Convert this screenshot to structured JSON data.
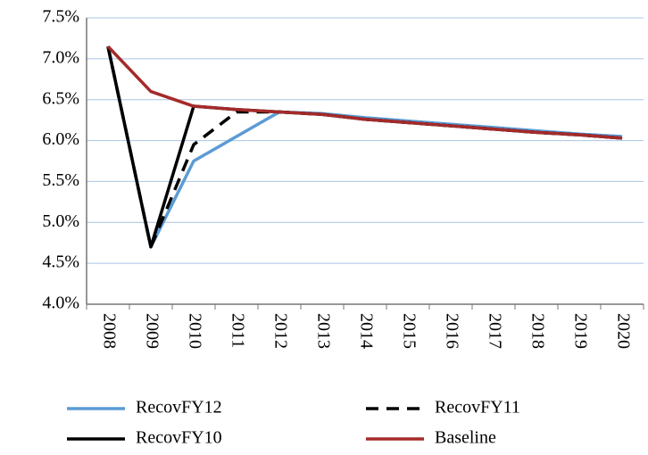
{
  "chart_data": {
    "type": "line",
    "categories": [
      "2008",
      "2009",
      "2010",
      "2011",
      "2012",
      "2013",
      "2014",
      "2015",
      "2016",
      "2017",
      "2018",
      "2019",
      "2020"
    ],
    "series": [
      {
        "name": "RecovFY12",
        "color": "#5b9bd5",
        "style": "solid",
        "values": [
          7.15,
          4.7,
          5.75,
          6.05,
          6.35,
          6.33,
          6.28,
          6.24,
          6.2,
          6.16,
          6.12,
          6.08,
          6.05
        ]
      },
      {
        "name": "RecovFY11",
        "color": "#000000",
        "style": "dashed",
        "values": [
          7.15,
          4.7,
          5.95,
          6.35,
          6.35,
          6.32,
          6.26,
          6.22,
          6.18,
          6.14,
          6.1,
          6.07,
          6.03
        ]
      },
      {
        "name": "RecovFY10",
        "color": "#000000",
        "style": "solid",
        "values": [
          7.15,
          4.7,
          6.42,
          6.38,
          6.35,
          6.32,
          6.26,
          6.22,
          6.18,
          6.14,
          6.1,
          6.07,
          6.03
        ]
      },
      {
        "name": "Baseline",
        "color": "#a52a2a",
        "style": "solid",
        "values": [
          7.15,
          6.6,
          6.42,
          6.38,
          6.35,
          6.32,
          6.26,
          6.22,
          6.18,
          6.14,
          6.1,
          6.07,
          6.03
        ]
      }
    ],
    "ylim": [
      4.0,
      7.5
    ],
    "yticks": [
      {
        "value": 4.0,
        "label": "4.0%"
      },
      {
        "value": 4.5,
        "label": "4.5%"
      },
      {
        "value": 5.0,
        "label": "5.0%"
      },
      {
        "value": 5.5,
        "label": "5.5%"
      },
      {
        "value": 6.0,
        "label": "6.0%"
      },
      {
        "value": 6.5,
        "label": "6.5%"
      },
      {
        "value": 7.0,
        "label": "7.0%"
      },
      {
        "value": 7.5,
        "label": "7.5%"
      }
    ],
    "grid": true,
    "legend": "bottom"
  }
}
